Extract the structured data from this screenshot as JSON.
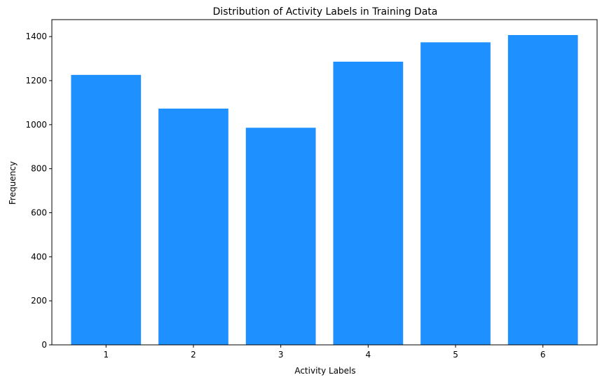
{
  "chart_data": {
    "type": "bar",
    "title": "Distribution of Activity Labels in Training Data",
    "xlabel": "Activity Labels",
    "ylabel": "Frequency",
    "categories": [
      "1",
      "2",
      "3",
      "4",
      "5",
      "6"
    ],
    "values": [
      1226,
      1073,
      986,
      1286,
      1374,
      1407
    ],
    "ylim": [
      0,
      1477
    ],
    "yticks": [
      0,
      200,
      400,
      600,
      800,
      1000,
      1200,
      1400
    ],
    "bar_color": "#1e90ff",
    "grid": false
  }
}
